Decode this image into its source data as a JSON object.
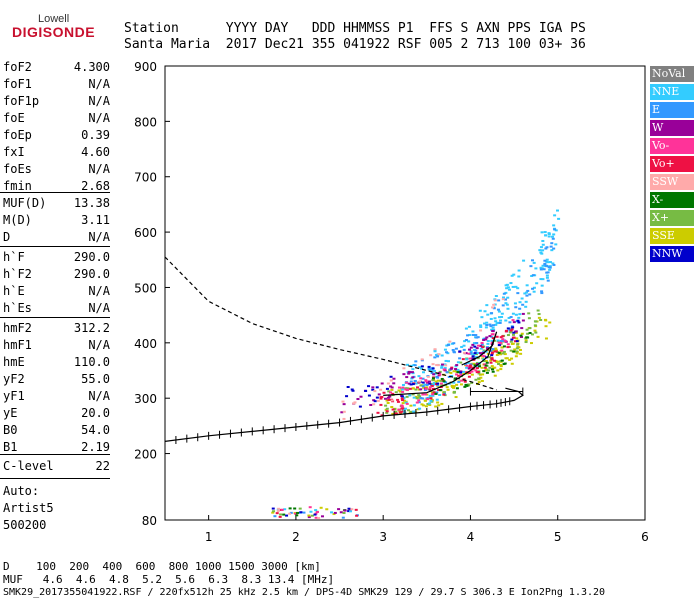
{
  "logo": {
    "top": "Lowell",
    "bottom": "DIGISONDE"
  },
  "header": {
    "line1": "Station      YYYY DAY   DDD HHMMSS P1  FFS S AXN PPS IGA PS",
    "line2": "Santa Maria  2017 Dec21 355 041922 RSF 005 2 713 100 03+ 36"
  },
  "params": {
    "group1": [
      [
        "foF2",
        "4.300"
      ],
      [
        "foF1",
        "N/A"
      ],
      [
        "foF1p",
        "N/A"
      ],
      [
        "foE",
        "N/A"
      ],
      [
        "foEp",
        "0.39"
      ],
      [
        "fxI",
        "4.60"
      ],
      [
        "foEs",
        "N/A"
      ],
      [
        "fmin",
        "2.68"
      ]
    ],
    "group2": [
      [
        "MUF(D)",
        "13.38"
      ],
      [
        "M(D)",
        "3.11"
      ],
      [
        "D",
        "N/A"
      ]
    ],
    "group3": [
      [
        "h`F",
        "290.0"
      ],
      [
        "h`F2",
        "290.0"
      ],
      [
        "h`E",
        "N/A"
      ],
      [
        "h`Es",
        "N/A"
      ]
    ],
    "group4": [
      [
        "hmF2",
        "312.2"
      ],
      [
        "hmF1",
        "N/A"
      ],
      [
        "hmE",
        "110.0"
      ],
      [
        "yF2",
        "55.0"
      ],
      [
        "yF1",
        "N/A"
      ],
      [
        "yE",
        "20.0"
      ],
      [
        "B0",
        "54.0"
      ],
      [
        "B1",
        "2.19"
      ]
    ],
    "clevel": [
      "C-level",
      "22"
    ],
    "auto": [
      "Auto:",
      "Artist5",
      "500200"
    ]
  },
  "footer": {
    "d_line": "D    100  200  400  600  800 1000 1500 3000 [km]",
    "muf_line": "MUF   4.6  4.6  4.8  5.2  5.6  6.3  8.3 13.4 [MHz]",
    "file_line": "SMK29_2017355041922.RSF / 220fx512h 25 kHz 2.5 km / DPS-4D SMK29 129 / 29.7 S 306.3 E Ion2Png 1.3.20"
  },
  "legend": [
    {
      "label": "NoVal",
      "color": "#808080"
    },
    {
      "label": "NNE",
      "color": "#33ccff"
    },
    {
      "label": "E",
      "color": "#3399ff"
    },
    {
      "label": "W",
      "color": "#990099"
    },
    {
      "label": "Vo-",
      "color": "#ff3399"
    },
    {
      "label": "Vo+",
      "color": "#ee1144"
    },
    {
      "label": "SSW",
      "color": "#ffaaaa"
    },
    {
      "label": "X-",
      "color": "#007700"
    },
    {
      "label": "X+",
      "color": "#77bb44"
    },
    {
      "label": "SSE",
      "color": "#cccc00"
    },
    {
      "label": "NNW",
      "color": "#0000cc"
    }
  ],
  "chart_data": {
    "type": "scatter",
    "xlim": [
      0.5,
      6
    ],
    "ylim": [
      80,
      900
    ],
    "xticks": [
      1,
      2,
      3,
      4,
      5,
      6
    ],
    "yticks": [
      80,
      200,
      300,
      400,
      500,
      600,
      700,
      800,
      900
    ],
    "grid": false,
    "legend_position": "right",
    "profile_dashed": {
      "x": [
        0.5,
        1.0,
        1.5,
        2.0,
        2.5,
        3.0,
        3.5,
        4.0,
        4.3
      ],
      "y": [
        555,
        475,
        435,
        408,
        388,
        370,
        350,
        330,
        315
      ]
    },
    "profile_solid": {
      "x": [
        3.0,
        3.5,
        3.8,
        4.0,
        4.2,
        4.3,
        4.25,
        4.1,
        3.9
      ],
      "y": [
        305,
        310,
        330,
        350,
        375,
        420,
        395,
        375,
        360
      ]
    },
    "true_height_curve": {
      "x": [
        0.5,
        1.0,
        1.5,
        2.0,
        2.5,
        3.0,
        3.5,
        4.0,
        4.3,
        4.5,
        4.6,
        4.55,
        4.4
      ],
      "y": [
        222,
        232,
        240,
        248,
        256,
        268,
        275,
        285,
        290,
        296,
        305,
        312,
        318
      ]
    },
    "error_bar": {
      "x1": 4.0,
      "x2": 4.6,
      "y": 312
    },
    "traces": [
      {
        "name": "SSE",
        "color": "#cccc00",
        "x0": 3.0,
        "x1": 4.9,
        "ymin": 290,
        "ymax": 440,
        "n": 160
      },
      {
        "name": "X+",
        "color": "#77bb44",
        "x0": 3.0,
        "x1": 4.8,
        "ymin": 295,
        "ymax": 450,
        "n": 110
      },
      {
        "name": "NNE",
        "color": "#33ccff",
        "x0": 3.2,
        "x1": 5.0,
        "ymin": 320,
        "ymax": 600,
        "n": 230
      },
      {
        "name": "E",
        "color": "#3399ff",
        "x0": 3.3,
        "x1": 5.0,
        "ymin": 330,
        "ymax": 580,
        "n": 110
      },
      {
        "name": "Vo+",
        "color": "#ee1144",
        "x0": 2.9,
        "x1": 4.5,
        "ymin": 290,
        "ymax": 420,
        "n": 80
      },
      {
        "name": "W",
        "color": "#990099",
        "x0": 2.5,
        "x1": 4.6,
        "ymin": 300,
        "ymax": 440,
        "n": 70
      },
      {
        "name": "Vo-",
        "color": "#ff3399",
        "x0": 3.0,
        "x1": 4.5,
        "ymin": 300,
        "ymax": 430,
        "n": 50
      },
      {
        "name": "NNW",
        "color": "#0000cc",
        "x0": 2.5,
        "x1": 4.6,
        "ymin": 305,
        "ymax": 430,
        "n": 40
      },
      {
        "name": "X-",
        "color": "#007700",
        "x0": 3.5,
        "x1": 4.7,
        "ymin": 320,
        "ymax": 420,
        "n": 30
      },
      {
        "name": "SSW",
        "color": "#ffaaaa",
        "x0": 2.5,
        "x1": 4.4,
        "ymin": 290,
        "ymax": 470,
        "n": 30
      }
    ]
  }
}
